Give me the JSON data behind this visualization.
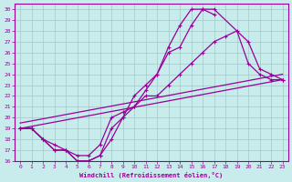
{
  "xlabel": "Windchill (Refroidissement éolien,°C)",
  "bg_color": "#c8ecec",
  "line_color": "#990099",
  "xlim": [
    -0.5,
    23.5
  ],
  "ylim": [
    16,
    30.5
  ],
  "xticks": [
    0,
    1,
    2,
    3,
    4,
    5,
    6,
    7,
    8,
    9,
    10,
    11,
    12,
    13,
    14,
    15,
    16,
    17,
    18,
    19,
    20,
    21,
    22,
    23
  ],
  "yticks": [
    16,
    17,
    18,
    19,
    20,
    21,
    22,
    23,
    24,
    25,
    26,
    27,
    28,
    29,
    30
  ],
  "curves": [
    {
      "x": [
        0,
        1,
        2,
        3,
        4,
        5,
        6,
        7,
        8,
        9,
        10,
        11,
        12,
        13,
        14,
        15,
        16,
        17
      ],
      "y": [
        19,
        19,
        18,
        17,
        17,
        16,
        16,
        16.5,
        18,
        20,
        22,
        23,
        24,
        26.5,
        28.5,
        30,
        30,
        29.5
      ]
    },
    {
      "x": [
        0,
        1,
        2,
        3,
        4,
        5,
        6,
        7,
        8,
        9,
        10,
        11,
        12,
        13,
        14,
        15,
        16,
        17,
        20,
        21,
        22,
        23
      ],
      "y": [
        19,
        19,
        18,
        17,
        17,
        16,
        16,
        16.5,
        19,
        20,
        21,
        22.5,
        24,
        26,
        26.5,
        28.5,
        30,
        30,
        27,
        24.5,
        24,
        23.5
      ]
    },
    {
      "x": [
        0,
        1,
        2,
        3,
        4,
        5,
        6,
        7,
        8,
        9,
        10,
        11,
        12,
        13,
        14,
        15,
        16,
        17,
        18,
        19,
        20,
        21,
        22,
        23
      ],
      "y": [
        19,
        19,
        18,
        17.5,
        17,
        16.5,
        16.5,
        17.5,
        20,
        20.5,
        21,
        22,
        22,
        23,
        24,
        25,
        26,
        27,
        27.5,
        28,
        25,
        24,
        23.5,
        23.5
      ]
    },
    {
      "x": [
        0,
        23
      ],
      "y": [
        19,
        23.5
      ]
    },
    {
      "x": [
        0,
        23
      ],
      "y": [
        19.5,
        24
      ]
    }
  ]
}
